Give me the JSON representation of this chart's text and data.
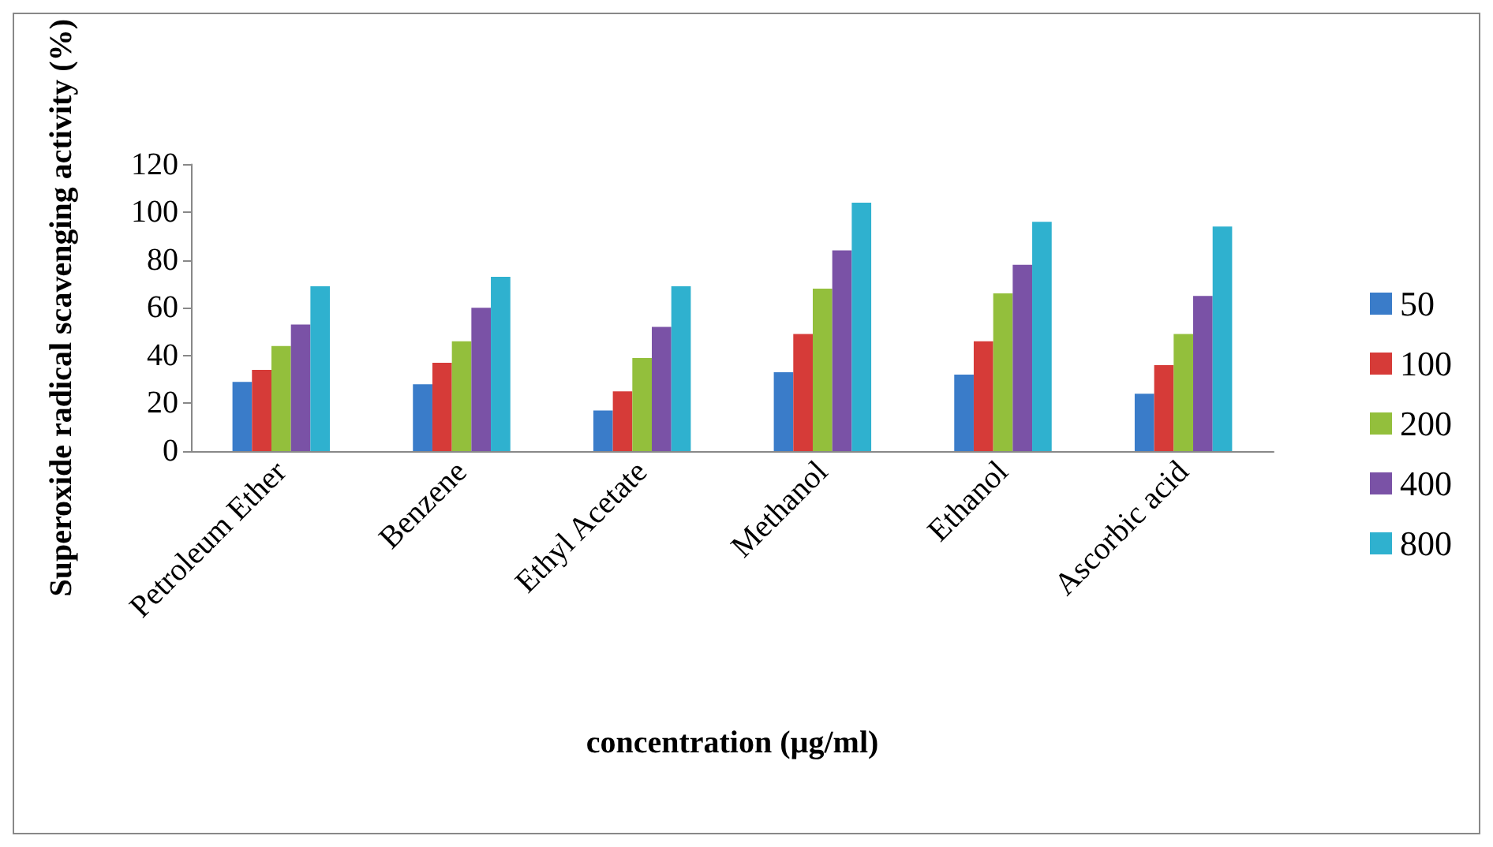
{
  "chart_data": {
    "type": "bar",
    "xlabel": "concentration (µg/ml)",
    "ylabel": "Superoxide radical scavenging activity (%)",
    "categories": [
      "Petroleum Ether",
      "Benzene",
      "Ethyl Acetate",
      "Methanol",
      "Ethanol",
      "Ascorbic acid"
    ],
    "series": [
      {
        "name": "50",
        "color": "#3a7cc9",
        "values": [
          29,
          28,
          17,
          33,
          32,
          24
        ]
      },
      {
        "name": "100",
        "color": "#d63b38",
        "values": [
          34,
          37,
          25,
          49,
          46,
          36
        ]
      },
      {
        "name": "200",
        "color": "#93bf3c",
        "values": [
          44,
          46,
          39,
          68,
          66,
          49
        ]
      },
      {
        "name": "400",
        "color": "#7a52a6",
        "values": [
          53,
          60,
          52,
          84,
          78,
          65
        ]
      },
      {
        "name": "800",
        "color": "#2fb1cf",
        "values": [
          69,
          73,
          69,
          104,
          96,
          94
        ]
      }
    ],
    "ylim": [
      0,
      120
    ],
    "yticks": [
      0,
      20,
      40,
      60,
      80,
      100,
      120
    ],
    "grid": false,
    "legend": "right"
  }
}
